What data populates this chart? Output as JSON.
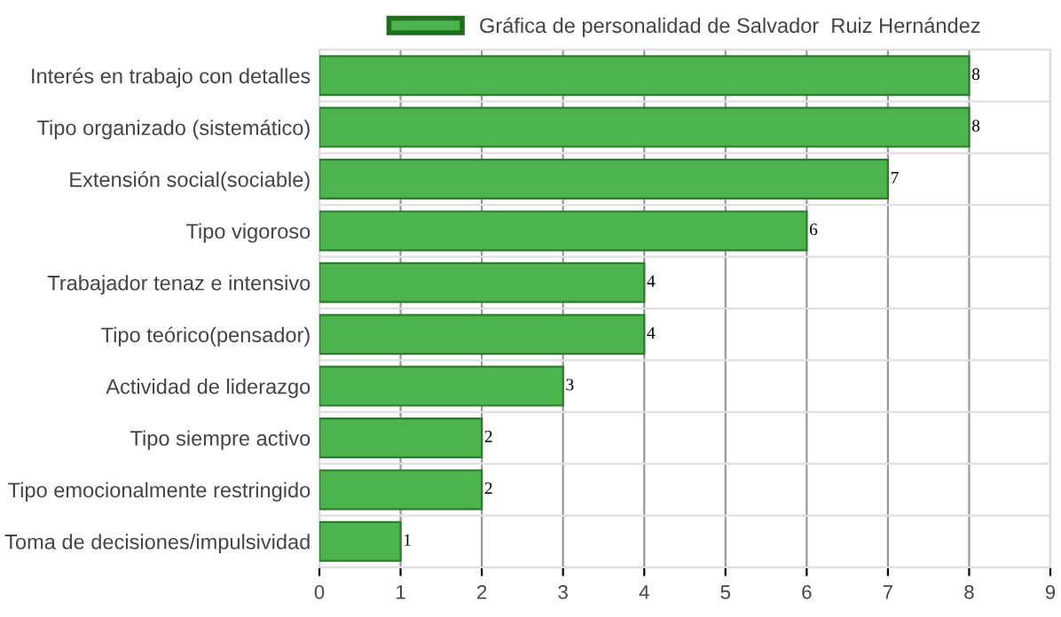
{
  "chart_data": {
    "type": "bar",
    "orientation": "horizontal",
    "categories": [
      "Interés en trabajo con detalles",
      "Tipo organizado (sistemático)",
      "Extensión social(sociable)",
      "Tipo vigoroso",
      "Trabajador tenaz e intensivo",
      "Tipo teórico(pensador)",
      "Actividad de liderazgo",
      "Tipo siempre activo",
      "Tipo emocionalmente restringido",
      "Toma de decisiones/impulsividad"
    ],
    "series": [
      {
        "name": "Gráfica de personalidad de Salvador  Ruiz Hernández",
        "color": "#4db34d",
        "values": [
          8,
          8,
          7,
          6,
          4,
          4,
          3,
          2,
          2,
          1
        ]
      }
    ],
    "xlim": [
      0,
      9
    ],
    "xticks": [
      0,
      1,
      2,
      3,
      4,
      5,
      6,
      7,
      8,
      9
    ],
    "grid": true,
    "legend": "top",
    "data_labels": true
  }
}
